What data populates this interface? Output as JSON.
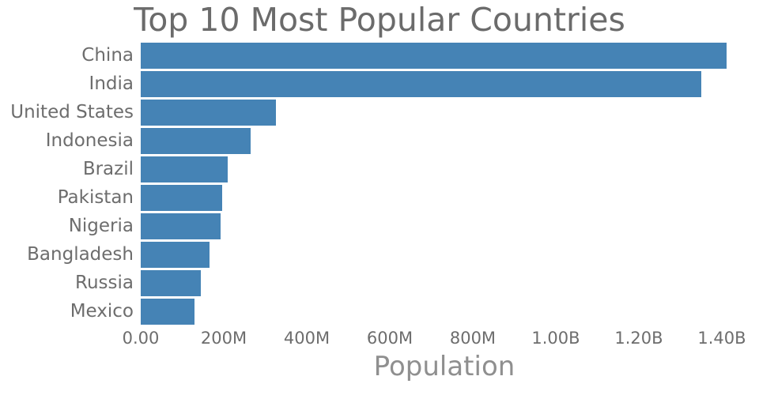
{
  "title": "Top 10 Most Popular Countries",
  "xlabel": "Population",
  "colors": {
    "bar": "#4583b5",
    "title_text": "#6b6b6b",
    "axis_text": "#6d6d6d"
  },
  "chart_data": {
    "type": "bar",
    "orientation": "horizontal",
    "title": "Top 10 Most Popular Countries",
    "xlabel": "Population",
    "ylabel": "",
    "categories": [
      "China",
      "India",
      "United States",
      "Indonesia",
      "Brazil",
      "Pakistan",
      "Nigeria",
      "Bangladesh",
      "Russia",
      "Mexico"
    ],
    "values_millions": [
      1412,
      1350,
      325,
      264,
      210,
      197,
      193,
      165,
      144,
      130
    ],
    "xlim_millions": [
      0,
      1463
    ],
    "xticks_millions": [
      0,
      200,
      400,
      600,
      800,
      1000,
      1200,
      1400
    ],
    "xtick_labels": [
      "0.00",
      "200M",
      "400M",
      "600M",
      "800M",
      "1.00B",
      "1.20B",
      "1.40B"
    ],
    "bar_color": "#4583b5",
    "legend": false,
    "grid": false
  }
}
